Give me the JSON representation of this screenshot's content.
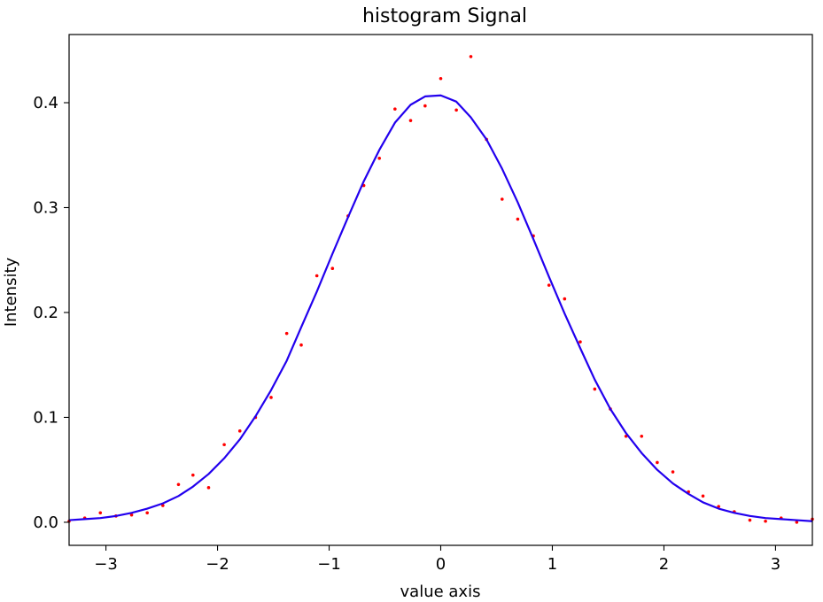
{
  "chart_data": {
    "type": "scatter",
    "title": "histogram Signal",
    "xlabel": "value axis",
    "ylabel": "Intensity",
    "xlim": [
      -3.33,
      3.33
    ],
    "ylim": [
      -0.022,
      0.465
    ],
    "xticks": [
      -3,
      -2,
      -1,
      0,
      1,
      2,
      3
    ],
    "xtick_labels": [
      "−3",
      "−2",
      "−1",
      "0",
      "1",
      "2",
      "3"
    ],
    "yticks": [
      0.0,
      0.1,
      0.2,
      0.3,
      0.4
    ],
    "ytick_labels": [
      "0.0",
      "0.1",
      "0.2",
      "0.3",
      "0.4"
    ],
    "grid": false,
    "colors": {
      "points": "#ff0000",
      "curve": "#2200ee"
    },
    "series": [
      {
        "kind": "points",
        "x": [
          -3.33,
          -3.19,
          -3.05,
          -2.91,
          -2.77,
          -2.63,
          -2.49,
          -2.35,
          -2.22,
          -2.08,
          -1.94,
          -1.8,
          -1.66,
          -1.52,
          -1.38,
          -1.25,
          -1.11,
          -0.97,
          -0.83,
          -0.69,
          -0.55,
          -0.41,
          -0.27,
          -0.14,
          -0.0,
          0.14,
          0.27,
          0.41,
          0.55,
          0.69,
          0.83,
          0.97,
          1.11,
          1.25,
          1.38,
          1.52,
          1.66,
          1.8,
          1.94,
          2.08,
          2.22,
          2.35,
          2.49,
          2.63,
          2.77,
          2.91,
          3.05,
          3.19,
          3.33
        ],
        "y": [
          0.001,
          0.004,
          0.009,
          0.006,
          0.007,
          0.009,
          0.016,
          0.036,
          0.045,
          0.033,
          0.074,
          0.087,
          0.1,
          0.119,
          0.18,
          0.169,
          0.235,
          0.242,
          0.292,
          0.321,
          0.347,
          0.394,
          0.383,
          0.397,
          0.423,
          0.393,
          0.444,
          0.365,
          0.308,
          0.289,
          0.273,
          0.226,
          0.213,
          0.172,
          0.127,
          0.108,
          0.082,
          0.082,
          0.057,
          0.048,
          0.029,
          0.025,
          0.015,
          0.01,
          0.002,
          0.001,
          0.004,
          0.0,
          0.003
        ]
      },
      {
        "kind": "line",
        "x": [
          -3.33,
          -3.19,
          -3.05,
          -2.91,
          -2.77,
          -2.63,
          -2.49,
          -2.35,
          -2.22,
          -2.08,
          -1.94,
          -1.8,
          -1.66,
          -1.52,
          -1.38,
          -1.25,
          -1.11,
          -0.97,
          -0.83,
          -0.69,
          -0.55,
          -0.41,
          -0.27,
          -0.14,
          -0.0,
          0.14,
          0.27,
          0.41,
          0.55,
          0.69,
          0.83,
          0.97,
          1.11,
          1.25,
          1.38,
          1.52,
          1.66,
          1.8,
          1.94,
          2.08,
          2.22,
          2.35,
          2.49,
          2.63,
          2.77,
          2.91,
          3.05,
          3.19,
          3.33
        ],
        "y": [
          0.002,
          0.003,
          0.004,
          0.006,
          0.009,
          0.013,
          0.018,
          0.025,
          0.034,
          0.046,
          0.061,
          0.079,
          0.101,
          0.126,
          0.154,
          0.186,
          0.22,
          0.256,
          0.291,
          0.325,
          0.355,
          0.381,
          0.398,
          0.406,
          0.407,
          0.401,
          0.386,
          0.365,
          0.337,
          0.305,
          0.27,
          0.234,
          0.199,
          0.166,
          0.136,
          0.108,
          0.085,
          0.066,
          0.05,
          0.037,
          0.027,
          0.019,
          0.013,
          0.009,
          0.006,
          0.004,
          0.003,
          0.002,
          0.001
        ]
      }
    ]
  }
}
